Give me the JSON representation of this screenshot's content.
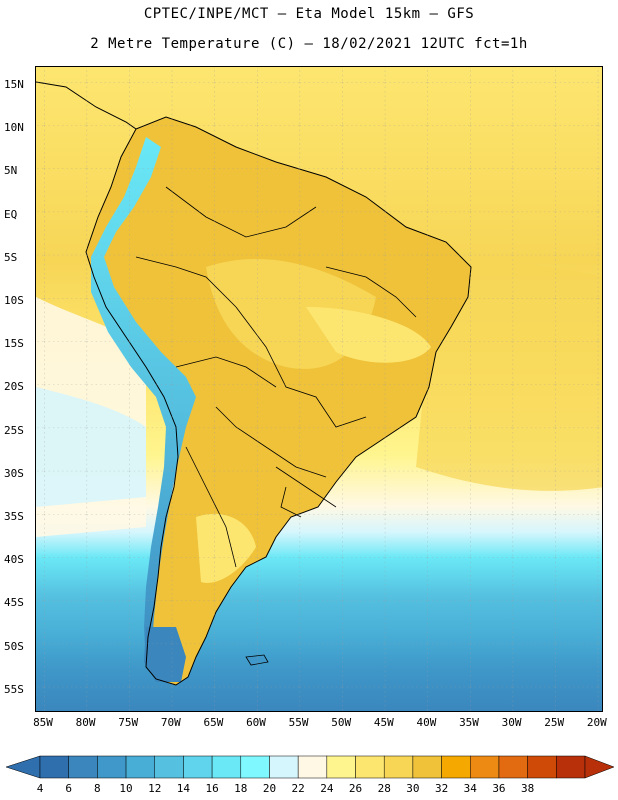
{
  "title_line1": "CPTEC/INPE/MCT –  Eta Model 15km – GFS",
  "title_line2": "2 Metre Temperature (C) – 18/02/2021 12UTC fct=1h",
  "lat_labels": [
    "15N",
    "10N",
    "5N",
    "EQ",
    "5S",
    "10S",
    "15S",
    "20S",
    "25S",
    "30S",
    "35S",
    "40S",
    "45S",
    "50S",
    "55S"
  ],
  "lon_labels": [
    "85W",
    "80W",
    "75W",
    "70W",
    "65W",
    "60W",
    "55W",
    "50W",
    "45W",
    "40W",
    "35W",
    "30W",
    "25W",
    "20W"
  ],
  "colorbar": {
    "labels": [
      "4",
      "6",
      "8",
      "10",
      "12",
      "14",
      "16",
      "18",
      "20",
      "22",
      "24",
      "26",
      "28",
      "30",
      "32",
      "34",
      "36",
      "38"
    ],
    "colors": [
      "#2f6fae",
      "#3a86bd",
      "#3f98c9",
      "#48aed6",
      "#55c0e0",
      "#5fd4ec",
      "#6ae8f6",
      "#7ff8ff",
      "#d6f6fd",
      "#fff8e4",
      "#fff58e",
      "#fde670",
      "#f7d656",
      "#efc23a",
      "#f5a800",
      "#ed8a14",
      "#e26a10",
      "#cf4a06",
      "#b8300a"
    ]
  },
  "map_colors": {
    "ocean_warm": "#fde670",
    "ocean_mid": "#fff58e",
    "ocean_cool": "#fff8e4",
    "land_hot": "#efc23a",
    "andes_cold": "#55c0e0",
    "south_cold": "#3a86bd",
    "border": "#000000"
  }
}
